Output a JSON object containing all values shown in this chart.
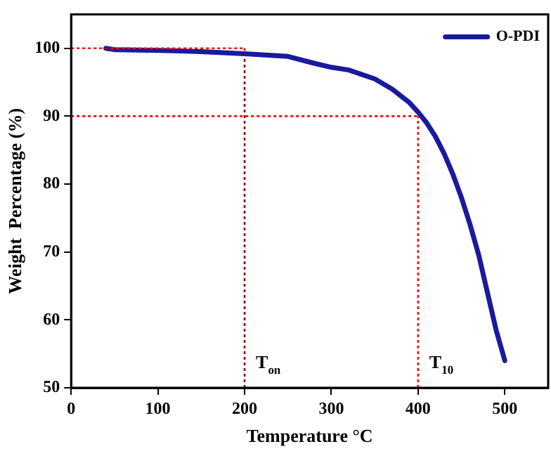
{
  "chart_data": {
    "type": "line",
    "xlabel": "Temperature °C",
    "ylabel": "Weight  Percentage (%)",
    "xlim": [
      0,
      550
    ],
    "ylim": [
      50,
      105
    ],
    "xticks": [
      0,
      100,
      200,
      300,
      400,
      500
    ],
    "yticks": [
      50,
      60,
      70,
      80,
      90,
      100
    ],
    "grid": false,
    "legend": "top right",
    "marker": "none",
    "line_style": "solid",
    "series": [
      {
        "name": "O-PDI",
        "color": "#1a1a9e",
        "x": [
          40,
          50,
          100,
          150,
          200,
          250,
          280,
          300,
          320,
          350,
          370,
          390,
          400,
          410,
          420,
          430,
          440,
          450,
          460,
          470,
          480,
          490,
          500
        ],
        "values": [
          100,
          99.8,
          99.7,
          99.5,
          99.2,
          98.8,
          97.8,
          97.2,
          96.8,
          95.5,
          94,
          92,
          90.6,
          89,
          87,
          84.5,
          81.5,
          78,
          74,
          69.5,
          64,
          58.5,
          54
        ]
      }
    ],
    "ref_lines": [
      {
        "axis": "x",
        "value": 200,
        "label": "T$_{on}$",
        "color": "#8b0000",
        "line_style": "dotted"
      },
      {
        "axis": "x",
        "value": 400,
        "label": "T$_{10}$",
        "color": "#ff0000",
        "line_style": "dotted"
      },
      {
        "axis": "y",
        "value": 100,
        "color": "#ff0000",
        "line_style": "dotted"
      },
      {
        "axis": "y",
        "value": 90,
        "color": "#ff0000",
        "line_style": "dotted"
      }
    ]
  }
}
